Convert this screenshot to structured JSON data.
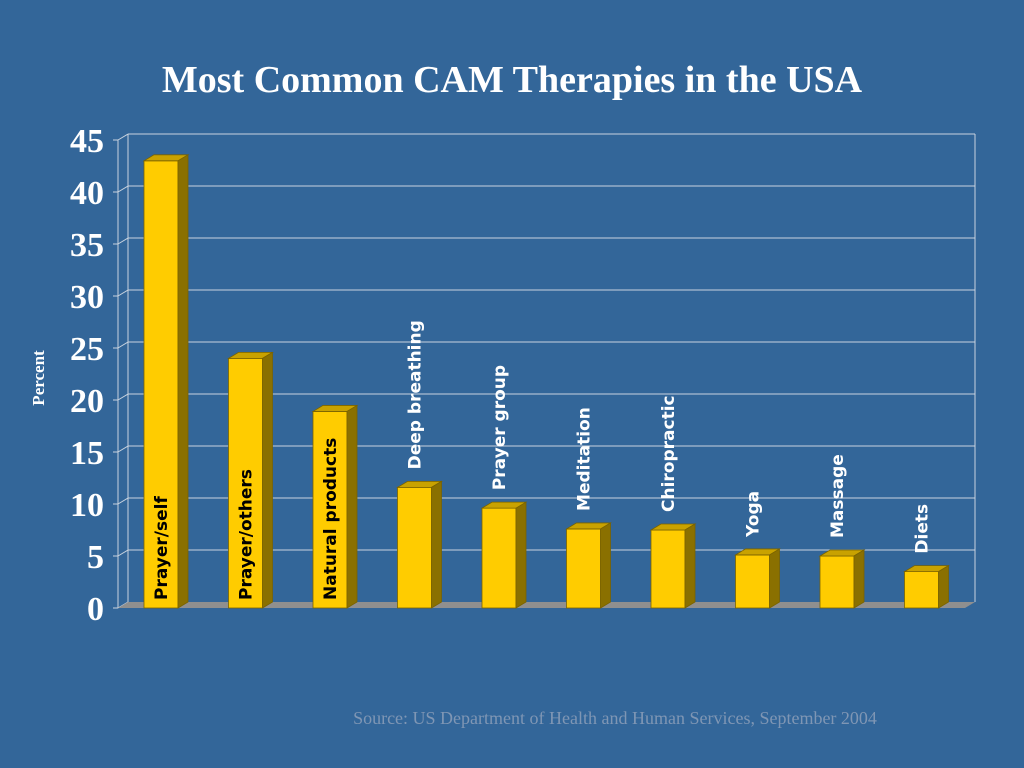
{
  "title": "Most Common CAM Therapies in the USA",
  "source": "Source: US Department of Health and Human Services, September 2004",
  "colors": {
    "background": "#336699",
    "bar_front": "#ffcc00",
    "bar_top": "#c9a200",
    "bar_side": "#8a7000",
    "floor": "#8f8f8f",
    "grid": "#c9d3df",
    "label_inside": "#000000",
    "label_above": "#ffffff"
  },
  "chart_data": {
    "type": "bar",
    "title": "Most Common CAM Therapies in the USA",
    "ylabel": "Percent",
    "xlabel": "",
    "ylim": [
      0,
      45
    ],
    "yticks": [
      0,
      5,
      10,
      15,
      20,
      25,
      30,
      35,
      40,
      45
    ],
    "grid": true,
    "categories": [
      "Prayer/self",
      "Prayer/others",
      "Natural products",
      "Deep breathing",
      "Prayer group",
      "Meditation",
      "Chiropractic",
      "Yoga",
      "Massage",
      "Diets"
    ],
    "values": [
      43,
      24,
      18.9,
      11.6,
      9.6,
      7.6,
      7.5,
      5.1,
      5,
      3.5
    ]
  }
}
